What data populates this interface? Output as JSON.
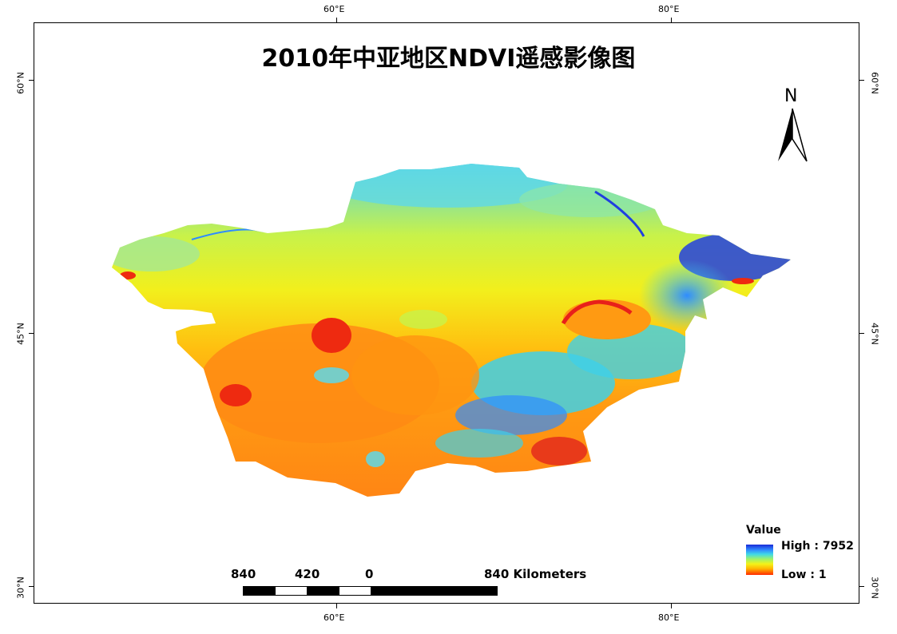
{
  "map": {
    "title": "2010年中亚地区NDVI遥感影像图",
    "graticule": {
      "top_lon": [
        "60°E",
        "80°E"
      ],
      "bottom_lon": [
        "60°E",
        "80°E"
      ],
      "left_lat": [
        "60°N",
        "45°N",
        "30°N"
      ],
      "right_lat": [
        "60°N",
        "45°N",
        "30°N"
      ]
    },
    "north_arrow": {
      "label": "N",
      "icon": "north-arrow-icon"
    },
    "legend": {
      "title": "Value",
      "high_label": "High : 7952",
      "low_label": "Low : 1",
      "colors": [
        "#1a2bd8",
        "#2f8cff",
        "#3fd9e6",
        "#9ff26a",
        "#f4f218",
        "#ffb400",
        "#ff2a00"
      ]
    },
    "scale_bar": {
      "labels": [
        "840",
        "420",
        "0",
        "840 Kilometers"
      ]
    },
    "raster_colors": {
      "blue": "#1f3fe0",
      "cyan": "#3fd0e8",
      "yellow": "#f2ef1c",
      "orange": "#ff9a12",
      "red": "#ee2a10"
    }
  }
}
